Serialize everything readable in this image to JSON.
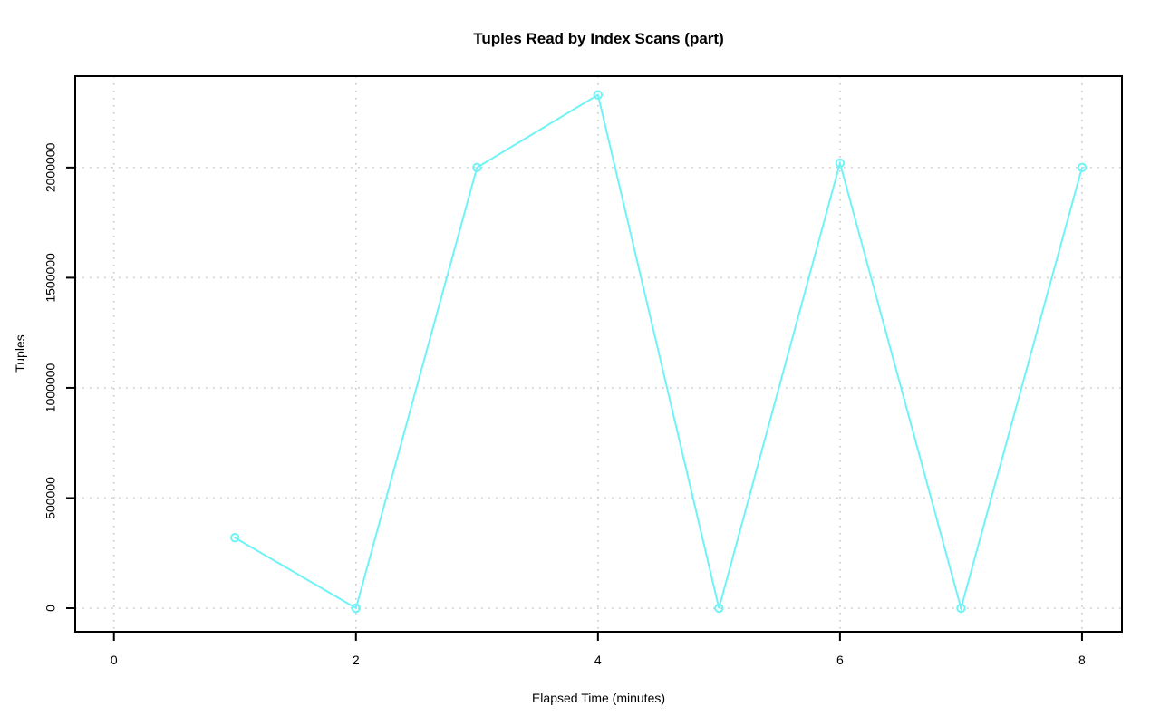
{
  "colors": {
    "background": "#ffffff",
    "axis": "#000000",
    "text": "#000000",
    "grid": "#c9c9c9",
    "series_line": "#70f3f6"
  },
  "chart_data": {
    "type": "line",
    "title": "Tuples Read by Index Scans (part)",
    "xlabel": "Elapsed Time (minutes)",
    "ylabel": "Tuples",
    "series": [
      {
        "name": "tuples-read-by-index-scans-part",
        "x": [
          1,
          2,
          3,
          4,
          5,
          6,
          7,
          8
        ],
        "y": [
          320000,
          0,
          2000000,
          2330000,
          0,
          2020000,
          0,
          2000000
        ]
      }
    ],
    "marker": "open-circle",
    "line_style": "solid",
    "grid": true,
    "grid_style": "dotted",
    "legend_position": "none",
    "xlim": [
      -0.32,
      8.33
    ],
    "ylim": [
      -107000,
      2415000
    ],
    "xticks": [
      0,
      2,
      4,
      6,
      8
    ],
    "xtick_labels": [
      "0",
      "2",
      "4",
      "6",
      "8"
    ],
    "yticks": [
      0,
      500000,
      1000000,
      1500000,
      2000000
    ],
    "ytick_labels": [
      "0",
      "500000",
      "1000000",
      "1500000",
      "2000000"
    ]
  }
}
